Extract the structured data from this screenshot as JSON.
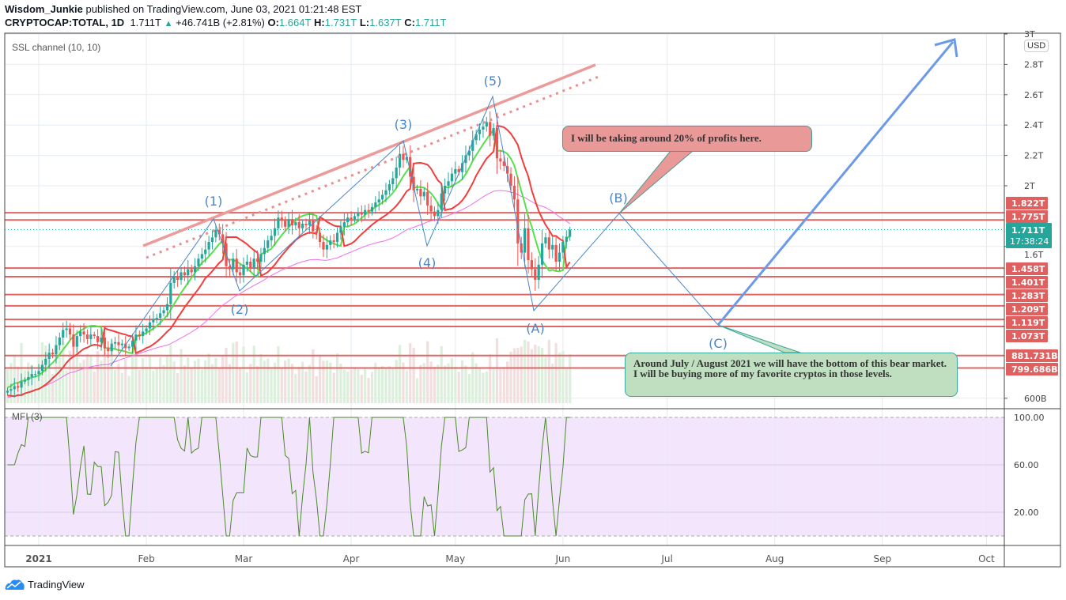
{
  "header": {
    "author": "Wisdom_Junkie",
    "published": "published on TradingView.com, June 03, 2021 01:21:48 EST",
    "symbol": "CRYPTOCAP:TOTAL, 1D",
    "last": "1.711T",
    "change": "+46.741B (+2.81%)",
    "o_label": "O:",
    "o": "1.664T",
    "h_label": "H:",
    "h": "1.731T",
    "l_label": "L:",
    "l": "1.637T",
    "c_label": "C:",
    "c": "1.711T"
  },
  "indicators": {
    "ssl": "SSL channel (10, 10)",
    "mfi": "MFI (3)"
  },
  "currency": "USD",
  "countdown": "17:38:24",
  "footer": {
    "brand": "TradingView"
  },
  "colors": {
    "up": "#26a69a",
    "down": "#ef5350",
    "ssl_up": "#56e04a",
    "ssl_down": "#f23d3d",
    "ma": "#f26ee6",
    "levels": "#e06666",
    "wave": "#4a86c8",
    "mfi": "#4a8a2a",
    "mfi_bg": "#f3e5fc"
  },
  "chart_data": {
    "type": "candlestick",
    "symbol": "CRYPTOCAP:TOTAL",
    "interval": "1D",
    "first_date": "2020-12-23",
    "closes_T": [
      0.65,
      0.66,
      0.68,
      0.67,
      0.71,
      0.72,
      0.74,
      0.76,
      0.76,
      0.78,
      0.82,
      0.86,
      0.9,
      0.89,
      0.95,
      1.0,
      1.05,
      1.06,
      1.02,
      0.94,
      1.01,
      1.04,
      1.02,
      0.99,
      1.02,
      1.01,
      0.97,
      1.0,
      0.93,
      0.91,
      0.96,
      0.97,
      0.95,
      0.96,
      0.93,
      0.94,
      0.98,
      1.02,
      1.01,
      1.04,
      1.06,
      1.1,
      1.12,
      1.13,
      1.16,
      1.18,
      1.22,
      1.36,
      1.4,
      1.38,
      1.43,
      1.41,
      1.45,
      1.43,
      1.47,
      1.52,
      1.55,
      1.58,
      1.63,
      1.66,
      1.71,
      1.68,
      1.62,
      1.47,
      1.45,
      1.52,
      1.43,
      1.41,
      1.48,
      1.5,
      1.46,
      1.52,
      1.5,
      1.55,
      1.59,
      1.64,
      1.67,
      1.72,
      1.79,
      1.77,
      1.73,
      1.78,
      1.74,
      1.76,
      1.72,
      1.75,
      1.74,
      1.77,
      1.7,
      1.69,
      1.63,
      1.58,
      1.61,
      1.64,
      1.63,
      1.69,
      1.73,
      1.76,
      1.79,
      1.78,
      1.8,
      1.82,
      1.81,
      1.84,
      1.83,
      1.86,
      1.89,
      1.91,
      1.94,
      1.97,
      2.01,
      2.05,
      2.12,
      2.21,
      2.17,
      2.19,
      2.06,
      1.97,
      1.98,
      1.93,
      1.96,
      1.87,
      1.83,
      1.8,
      1.84,
      1.95,
      2.0,
      2.03,
      2.08,
      2.11,
      2.09,
      2.15,
      2.2,
      2.23,
      2.3,
      2.34,
      2.37,
      2.39,
      2.42,
      2.33,
      2.38,
      2.18,
      2.16,
      2.13,
      2.08,
      2.0,
      1.91,
      1.62,
      1.56,
      1.72,
      1.51,
      1.45,
      1.38,
      1.48,
      1.62,
      1.66,
      1.58,
      1.61,
      1.5,
      1.56,
      1.63,
      1.664,
      1.711
    ],
    "last_ohlc_T": {
      "open": 1.664,
      "high": 1.731,
      "low": 1.637,
      "close": 1.711
    },
    "y_ticks": [
      "3T",
      "2.8T",
      "2.6T",
      "2.4T",
      "2.2T",
      "2T",
      "1.6T",
      "600B"
    ],
    "x_ticks": [
      "2021",
      "Feb",
      "Mar",
      "Apr",
      "May",
      "Jun",
      "Jul",
      "Aug",
      "Sep",
      "Oct"
    ],
    "mfi_ticks": [
      "100.00",
      "60.00",
      "20.00"
    ],
    "levels": [
      "1.822T",
      "1.775T",
      "1.458T",
      "1.401T",
      "1.283T",
      "1.209T",
      "1.119T",
      "1.073T",
      "881.731B",
      "799.686B"
    ],
    "current_price": "1.711T",
    "wave_labels": [
      "(1)",
      "(2)",
      "(3)",
      "(4)",
      "(5)",
      "(A)",
      "(B)",
      "(C)"
    ],
    "annotations": [
      "I will be taking around 20% of profits here.",
      "Around July / August 2021 we will have the bottom of this bear market. I will be buying more of my favorite cryptos in those levels."
    ]
  }
}
